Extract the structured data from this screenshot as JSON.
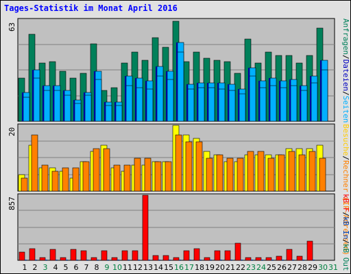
{
  "title": "Tages-Statistik im Monat April 2016",
  "colors": {
    "background": "#e0e0e0",
    "plot_bg": "#c0c0c0",
    "grid": "#808080",
    "anfragen": "#00805a",
    "dateien": "#00b0ff",
    "rechner": "#ff8000",
    "besuche": "#ffff00",
    "kb_f": "#ff0000",
    "kb_in": "#0040b0",
    "kb_out": "#00805a",
    "title": "#0000ff",
    "weekday": "#000000",
    "weekend": "#008040"
  },
  "right_labels": {
    "panel1": [
      {
        "text": "Anfragen",
        "color": "#00805a"
      },
      {
        "text": "/",
        "color": "#000000"
      },
      {
        "text": "Dateien",
        "color": "#0000c0"
      },
      {
        "text": "/",
        "color": "#000000"
      },
      {
        "text": "Seiten",
        "color": "#00b0ff"
      }
    ],
    "panel2": [
      {
        "text": "Besuche",
        "color": "#ffcc00"
      },
      {
        "text": "/",
        "color": "#000000"
      },
      {
        "text": "Rechner (IP-Adressen)",
        "color": "#ff8000"
      }
    ],
    "panel3": [
      {
        "text": "kB F",
        "color": "#ff0000"
      },
      {
        "text": "/",
        "color": "#000000"
      },
      {
        "text": "kB In",
        "color": "#0040b0"
      },
      {
        "text": "/",
        "color": "#000000"
      },
      {
        "text": "kB Out",
        "color": "#00805a"
      }
    ]
  },
  "chart_data": [
    {
      "type": "bar",
      "panel": "hits",
      "ymax_label": "63",
      "ylim": [
        0,
        63
      ],
      "categories": [
        "1",
        "2",
        "3",
        "4",
        "5",
        "6",
        "7",
        "8",
        "9",
        "10",
        "11",
        "12",
        "13",
        "14",
        "15",
        "16",
        "17",
        "18",
        "19",
        "20",
        "21",
        "22",
        "23",
        "24",
        "25",
        "26",
        "27",
        "28",
        "29",
        "30",
        "31"
      ],
      "series": [
        {
          "name": "Anfragen",
          "values": [
            27,
            54,
            36,
            37,
            31,
            27,
            30,
            48,
            19,
            21,
            36,
            43,
            38,
            52,
            46,
            62,
            37,
            43,
            39,
            38,
            37,
            30,
            51,
            36,
            43,
            41,
            41,
            36,
            41,
            58,
            null
          ]
        },
        {
          "name": "Dateien",
          "values": [
            18,
            32,
            22,
            22,
            19,
            13,
            18,
            31,
            12,
            12,
            28,
            27,
            25,
            34,
            31,
            49,
            23,
            24,
            24,
            24,
            23,
            20,
            33,
            25,
            27,
            25,
            26,
            22,
            28,
            38,
            null
          ]
        },
        {
          "name": "Seiten",
          "values": [
            15,
            27,
            19,
            19,
            16,
            11,
            16,
            26,
            10,
            10,
            22,
            21,
            20,
            28,
            26,
            43,
            20,
            21,
            21,
            20,
            19,
            17,
            28,
            21,
            22,
            21,
            22,
            19,
            24,
            32,
            null
          ]
        }
      ]
    },
    {
      "type": "bar",
      "panel": "visits",
      "ymax_label": "20",
      "ylim": [
        0,
        20
      ],
      "categories": [
        "1",
        "2",
        "3",
        "4",
        "5",
        "6",
        "7",
        "8",
        "9",
        "10",
        "11",
        "12",
        "13",
        "14",
        "15",
        "16",
        "17",
        "18",
        "19",
        "20",
        "21",
        "22",
        "23",
        "24",
        "25",
        "26",
        "27",
        "28",
        "29",
        "30",
        "31"
      ],
      "series": [
        {
          "name": "Besuche",
          "values": [
            5,
            14,
            7,
            7,
            6,
            4,
            9,
            12,
            14,
            7,
            6,
            8,
            8,
            9,
            9,
            20,
            17,
            16,
            12,
            11,
            9,
            9,
            11,
            11,
            11,
            11,
            13,
            13,
            13,
            14,
            null
          ]
        },
        {
          "name": "Rechner (IP-Adressen)",
          "values": [
            4,
            17,
            8,
            6,
            7,
            7,
            9,
            13,
            13,
            8,
            8,
            10,
            10,
            9,
            9,
            17,
            15,
            15,
            10,
            11,
            10,
            10,
            12,
            12,
            10,
            11,
            12,
            11,
            12,
            10,
            null
          ]
        }
      ]
    },
    {
      "type": "bar",
      "panel": "volume",
      "ymax_label": "857",
      "ylim": [
        0,
        857
      ],
      "categories": [
        "1",
        "2",
        "3",
        "4",
        "5",
        "6",
        "7",
        "8",
        "9",
        "10",
        "11",
        "12",
        "13",
        "14",
        "15",
        "16",
        "17",
        "18",
        "19",
        "20",
        "21",
        "22",
        "23",
        "24",
        "25",
        "26",
        "27",
        "28",
        "29",
        "30",
        "31"
      ],
      "series": [
        {
          "name": "kB F",
          "values": [
            110,
            150,
            40,
            140,
            40,
            140,
            130,
            40,
            130,
            40,
            130,
            130,
            857,
            60,
            60,
            40,
            130,
            150,
            40,
            130,
            130,
            230,
            40,
            40,
            40,
            50,
            140,
            50,
            250,
            0,
            null
          ]
        },
        {
          "name": "kB In",
          "values": [
            5,
            5,
            5,
            5,
            5,
            5,
            5,
            5,
            5,
            5,
            5,
            5,
            5,
            5,
            5,
            5,
            5,
            5,
            5,
            5,
            5,
            5,
            5,
            5,
            5,
            5,
            5,
            5,
            5,
            0,
            null
          ]
        },
        {
          "name": "kB Out",
          "values": [
            0,
            0,
            0,
            0,
            0,
            0,
            0,
            0,
            0,
            0,
            0,
            0,
            0,
            0,
            0,
            0,
            0,
            0,
            0,
            0,
            0,
            0,
            0,
            0,
            0,
            0,
            0,
            0,
            0,
            0,
            null
          ]
        }
      ]
    }
  ],
  "x_axis": {
    "days": [
      "1",
      "2",
      "3",
      "4",
      "5",
      "6",
      "7",
      "8",
      "9",
      "10",
      "11",
      "12",
      "13",
      "14",
      "15",
      "16",
      "17",
      "18",
      "19",
      "20",
      "21",
      "22",
      "23",
      "24",
      "25",
      "26",
      "27",
      "28",
      "29",
      "30",
      "31"
    ],
    "weekend": [
      3,
      9,
      10,
      16,
      17,
      23,
      24,
      30,
      31
    ]
  }
}
